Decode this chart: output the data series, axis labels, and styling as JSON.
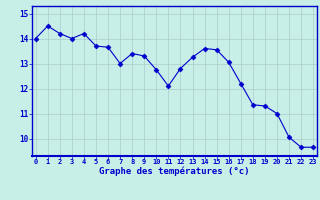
{
  "x": [
    0,
    1,
    2,
    3,
    4,
    5,
    6,
    7,
    8,
    9,
    10,
    11,
    12,
    13,
    14,
    15,
    16,
    17,
    18,
    19,
    20,
    21,
    22,
    23
  ],
  "y": [
    14.0,
    14.5,
    14.2,
    14.0,
    14.2,
    13.7,
    13.65,
    13.0,
    13.4,
    13.3,
    12.75,
    12.1,
    12.8,
    13.25,
    13.6,
    13.55,
    13.05,
    12.2,
    11.35,
    11.3,
    11.0,
    10.05,
    9.65,
    9.65
  ],
  "line_color": "#0000cc",
  "marker": "D",
  "marker_size": 2.5,
  "bg_color": "#c8eee8",
  "grid_color": "#aacccc",
  "xlabel": "Graphe des températures (°c)",
  "xlabel_color": "#0000cc",
  "tick_color": "#0000cc",
  "axis_line_color": "#0000cc",
  "ylim": [
    9.3,
    15.3
  ],
  "yticks": [
    10,
    11,
    12,
    13,
    14,
    15
  ],
  "xticks": [
    0,
    1,
    2,
    3,
    4,
    5,
    6,
    7,
    8,
    9,
    10,
    11,
    12,
    13,
    14,
    15,
    16,
    17,
    18,
    19,
    20,
    21,
    22,
    23
  ]
}
